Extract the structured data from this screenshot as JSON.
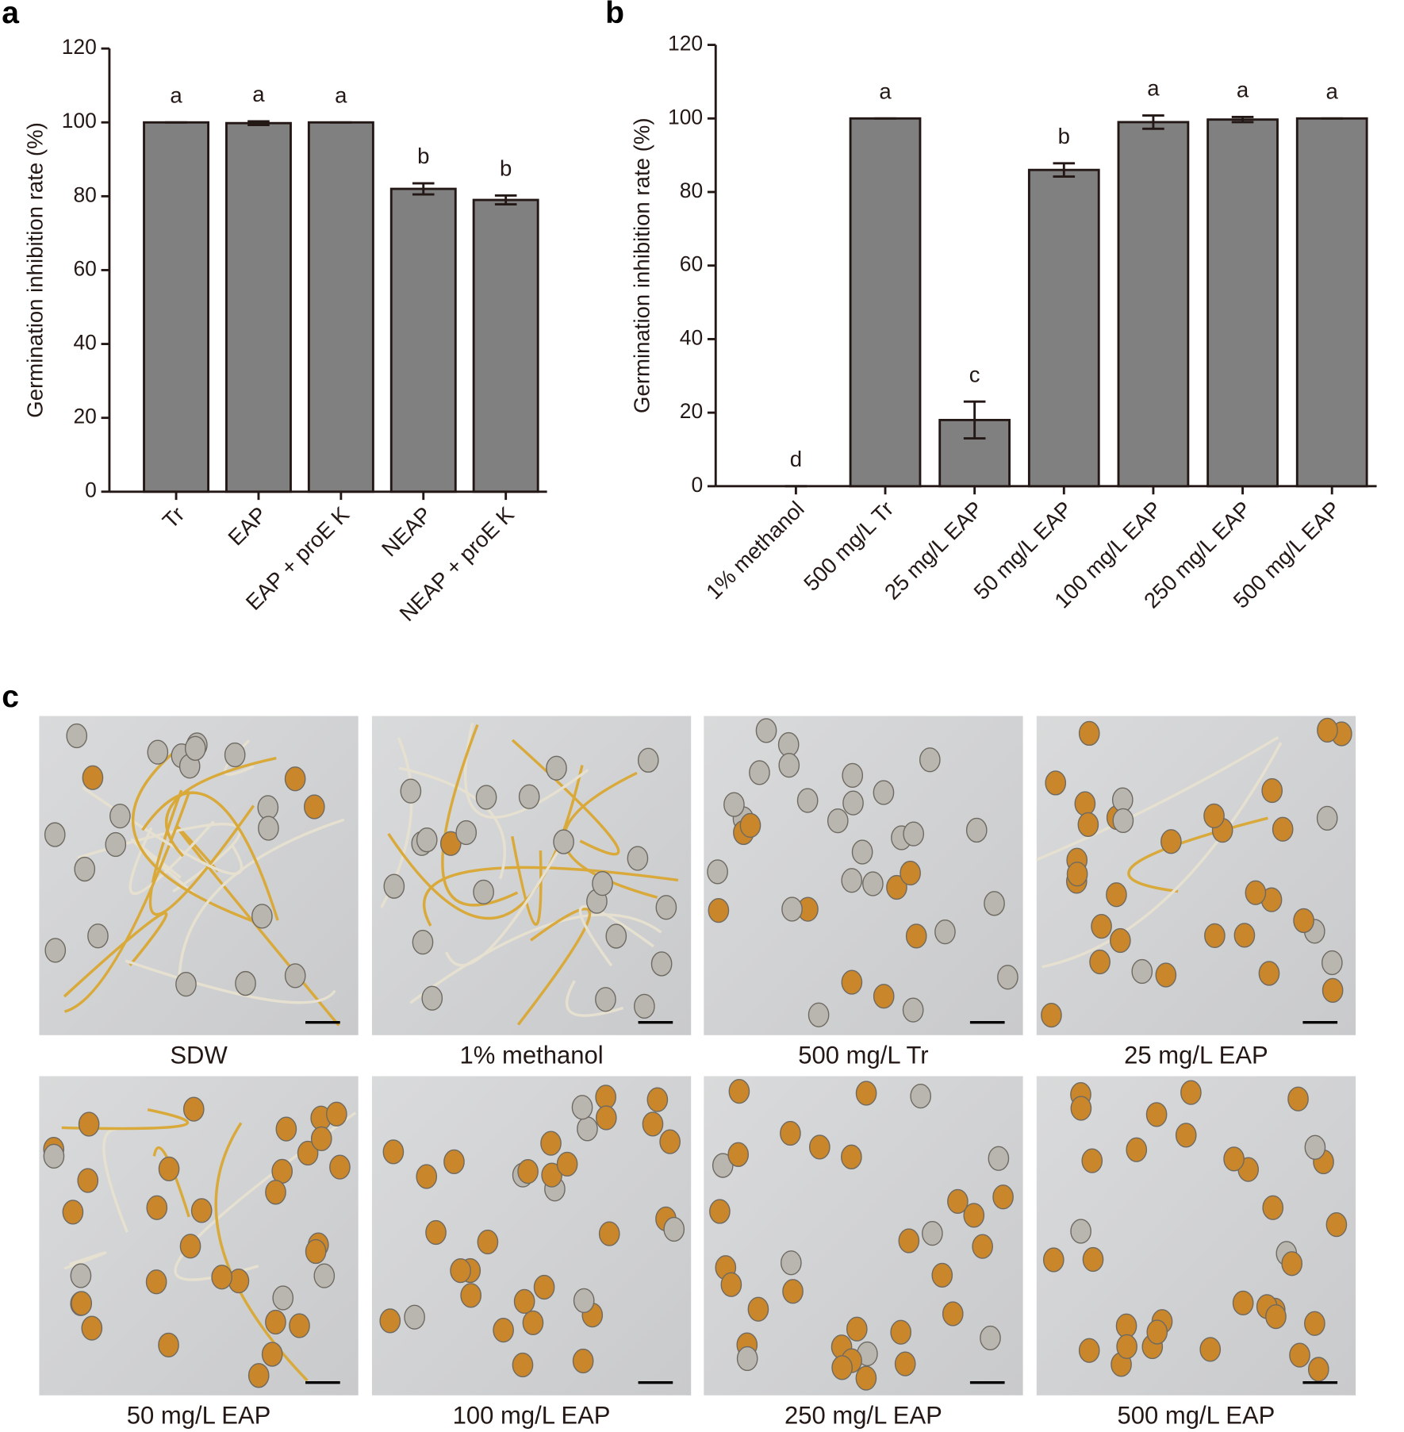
{
  "chart_data": [
    {
      "type": "bar",
      "panel_label": "a",
      "ylabel": "Germination inhibition rate (%)",
      "categories": [
        "Tr",
        "EAP",
        "EAP + proE K",
        "NEAP",
        "NEAP + proE K"
      ],
      "values": [
        100,
        99.8,
        100,
        82,
        79
      ],
      "errors": [
        0,
        0.5,
        0,
        1.5,
        1.2
      ],
      "letters": [
        "a",
        "a",
        "a",
        "b",
        "b"
      ],
      "ylim": [
        0,
        120
      ],
      "yticks": [
        0,
        20,
        40,
        60,
        80,
        100,
        120
      ],
      "color": "#808080"
    },
    {
      "type": "bar",
      "panel_label": "b",
      "ylabel": "Germination inhibition rate (%)",
      "categories": [
        "1% methanol",
        "500 mg/L Tr",
        "25 mg/L EAP",
        "50 mg/L EAP",
        "100 mg/L EAP",
        "250 mg/L EAP",
        "500 mg/L EAP"
      ],
      "values": [
        0,
        100,
        18,
        86,
        99,
        99.7,
        100
      ],
      "errors": [
        0,
        0,
        5,
        1.8,
        1.8,
        0.7,
        0
      ],
      "letters": [
        "d",
        "a",
        "c",
        "b",
        "a",
        "a",
        "a"
      ],
      "ylim": [
        0,
        120
      ],
      "yticks": [
        0,
        20,
        40,
        60,
        80,
        100,
        120
      ],
      "color": "#808080"
    }
  ],
  "images": {
    "panel_label": "c",
    "captions": [
      "SDW",
      "1% methanol",
      "500 mg/L Tr",
      "25 mg/L EAP",
      "50 mg/L EAP",
      "100 mg/L EAP",
      "250 mg/L EAP",
      "500 mg/L EAP"
    ]
  }
}
